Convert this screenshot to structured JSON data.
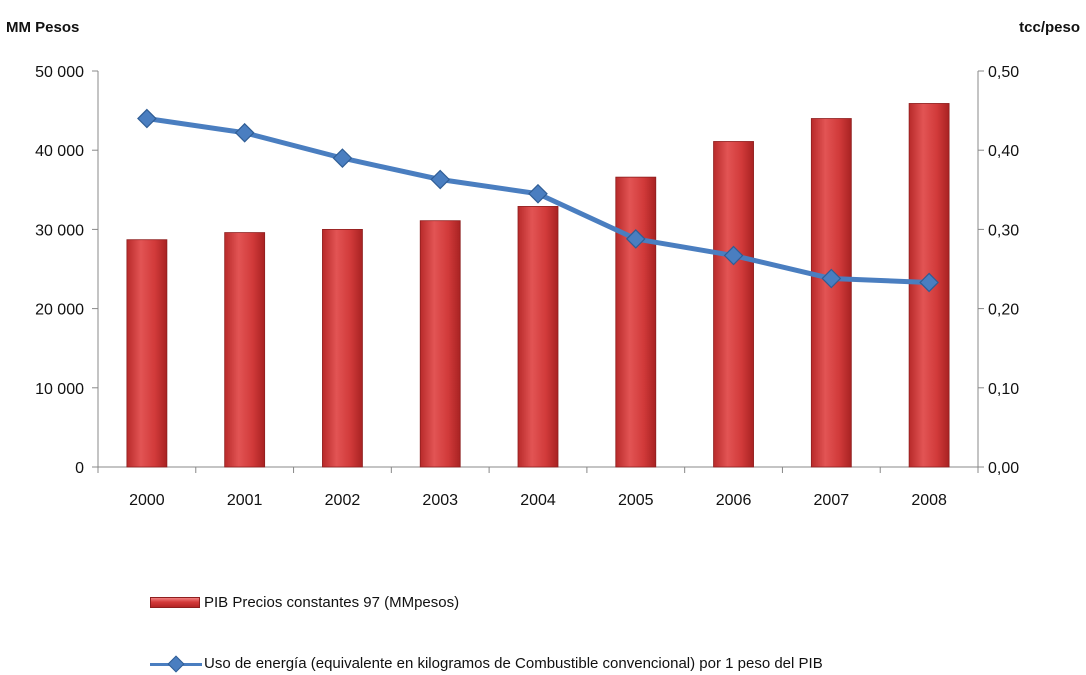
{
  "chart_data": {
    "type": "bar+line",
    "categories": [
      "2000",
      "2001",
      "2002",
      "2003",
      "2004",
      "2005",
      "2006",
      "2007",
      "2008"
    ],
    "left_axis": {
      "title": "MM Pesos",
      "ylim": [
        0,
        50000
      ],
      "ticks": [
        "0",
        "10 000",
        "20 000",
        "30 000",
        "40 000",
        "50 000"
      ]
    },
    "right_axis": {
      "title": "tcc/peso",
      "ylim": [
        0,
        0.5
      ],
      "ticks": [
        "0,00",
        "0,10",
        "0,20",
        "0,30",
        "0,40",
        "0,50"
      ]
    },
    "series": [
      {
        "name": "PIB Precios constantes 97 (MMpesos)",
        "type": "bar",
        "axis": "left",
        "color": "#d43a3a",
        "values": [
          28700,
          29600,
          30000,
          31100,
          32900,
          36600,
          41100,
          44000,
          45900
        ]
      },
      {
        "name": "Uso de energía (equivalente en kilogramos de Combustible convencional) por 1 peso del PIB",
        "type": "line",
        "axis": "right",
        "color": "#4a7ec0",
        "values": [
          0.44,
          0.422,
          0.39,
          0.363,
          0.345,
          0.288,
          0.267,
          0.238,
          0.233
        ]
      }
    ],
    "grid": false,
    "legend_position": "bottom"
  }
}
